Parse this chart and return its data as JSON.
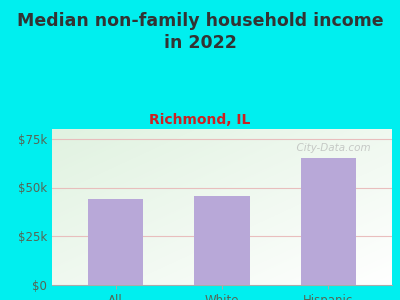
{
  "title": "Median non-family household income\nin 2022",
  "subtitle": "Richmond, IL",
  "categories": [
    "All",
    "White",
    "Hispanic"
  ],
  "values": [
    44000,
    45500,
    65000
  ],
  "bar_color": "#b8a8d8",
  "background_outer": "#00efef",
  "title_color": "#333333",
  "subtitle_color": "#cc2222",
  "tick_color": "#556655",
  "axis_color": "#aaaaaa",
  "grid_color": "#e8b8b8",
  "ylim": [
    0,
    80000
  ],
  "yticks": [
    0,
    25000,
    50000,
    75000
  ],
  "ytick_labels": [
    "$0",
    "$25k",
    "$50k",
    "$75k"
  ],
  "watermark": "  City-Data.com",
  "title_fontsize": 12.5,
  "subtitle_fontsize": 10,
  "tick_fontsize": 8.5
}
